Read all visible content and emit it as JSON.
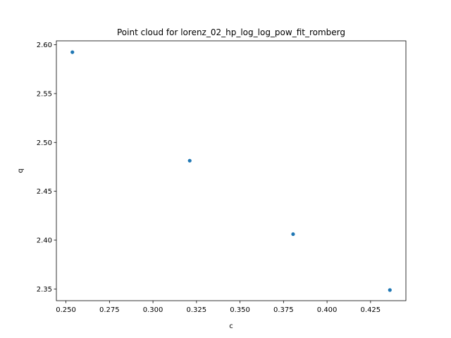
{
  "chart_data": {
    "type": "scatter",
    "title": "Point cloud for lorenz_02_hp_log_log_pow_fit_romberg",
    "xlabel": "c",
    "ylabel": "q",
    "xlim": [
      0.2445,
      0.4453
    ],
    "ylim": [
      2.338,
      2.604
    ],
    "xticks": [
      "0.250",
      "0.275",
      "0.300",
      "0.325",
      "0.350",
      "0.375",
      "0.400",
      "0.425"
    ],
    "yticks": [
      "2.35",
      "2.40",
      "2.45",
      "2.50",
      "2.55",
      "2.60"
    ],
    "grid": false,
    "series": [
      {
        "x": [
          0.2537,
          0.3211,
          0.3805,
          0.4361
        ],
        "y": [
          2.5924,
          2.4813,
          2.4061,
          2.3489
        ]
      }
    ],
    "point_color": "#1f77b4"
  }
}
